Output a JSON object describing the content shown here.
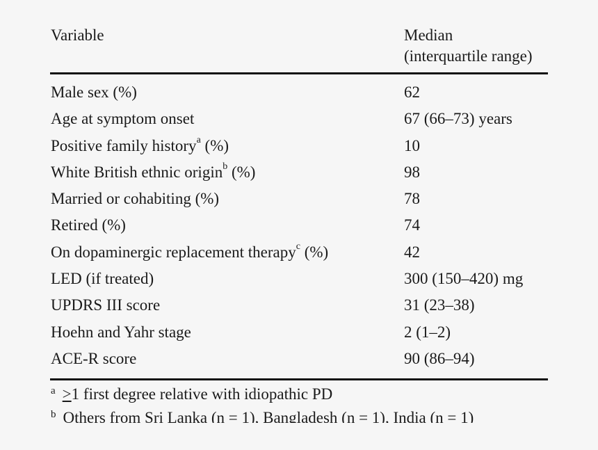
{
  "table": {
    "header": {
      "variable": "Variable",
      "median_line1": "Median",
      "median_line2": "(interquartile range)"
    },
    "rows": [
      {
        "label": "Male sex (%)",
        "sup": "",
        "suffix": "",
        "value": "62"
      },
      {
        "label": "Age at symptom onset",
        "sup": "",
        "suffix": "",
        "value": "67 (66–73) years"
      },
      {
        "label": "Positive family history",
        "sup": "a",
        "suffix": " (%)",
        "value": "10"
      },
      {
        "label": "White British ethnic origin",
        "sup": "b",
        "suffix": " (%)",
        "value": "98"
      },
      {
        "label": "Married or cohabiting (%)",
        "sup": "",
        "suffix": "",
        "value": "78"
      },
      {
        "label": "Retired (%)",
        "sup": "",
        "suffix": "",
        "value": "74"
      },
      {
        "label": "On dopaminergic replacement therapy",
        "sup": "c",
        "suffix": " (%)",
        "value": "42"
      },
      {
        "label": "LED (if treated)",
        "sup": "",
        "suffix": "",
        "value": "300 (150–420) mg"
      },
      {
        "label": "UPDRS III score",
        "sup": "",
        "suffix": "",
        "value": "31 (23–38)"
      },
      {
        "label": "Hoehn and Yahr stage",
        "sup": "",
        "suffix": "",
        "value": "2 (1–2)"
      },
      {
        "label": "ACE-R score",
        "sup": "",
        "suffix": "",
        "value": "90 (86–94)"
      }
    ]
  },
  "footnotes": [
    {
      "mark": "a",
      "symbol": ">",
      "text": "1 first degree relative with idiopathic PD"
    },
    {
      "mark": "b",
      "symbol": "",
      "text": "Others from Sri Lanka (n = 1), Bangladesh (n = 1), India (n = 1)"
    }
  ]
}
